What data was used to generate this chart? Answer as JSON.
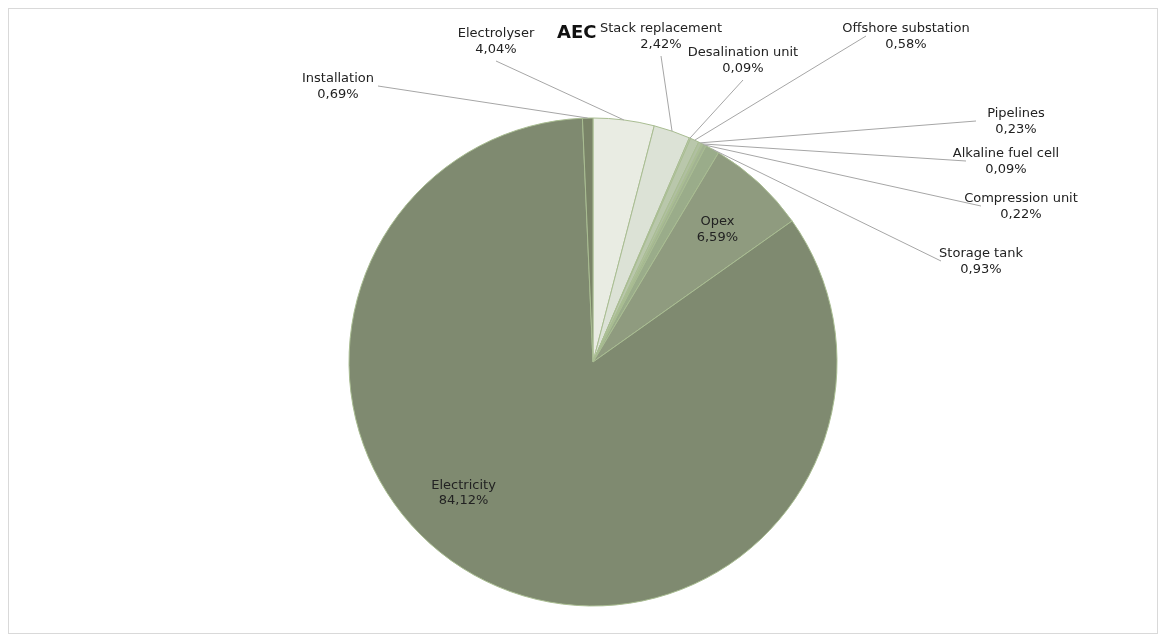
{
  "chart_data": {
    "type": "pie",
    "title": "AEC",
    "categories": [
      "Electrolyser",
      "Stack replacement",
      "Desalination unit",
      "Offshore substation",
      "Pipelines",
      "Alkaline fuel cell",
      "Compression unit",
      "Storage tank",
      "Opex",
      "Electricity",
      "Installation"
    ],
    "values": [
      4.04,
      2.42,
      0.09,
      0.58,
      0.23,
      0.09,
      0.22,
      0.93,
      6.59,
      84.12,
      0.69
    ],
    "value_labels": [
      "4,04%",
      "2,42%",
      "0,09%",
      "0,58%",
      "0,23%",
      "0,09%",
      "0,22%",
      "0,93%",
      "6,59%",
      "84,12%",
      "0,69%"
    ],
    "colors": [
      "#e9ece3",
      "#dce2d6",
      "#c3cfb7",
      "#b9c7ab",
      "#b0bfa1",
      "#a9b999",
      "#a2b392",
      "#9aac8a",
      "#8f9b7f",
      "#7f8a70",
      "#7a8468"
    ],
    "legend": false
  }
}
